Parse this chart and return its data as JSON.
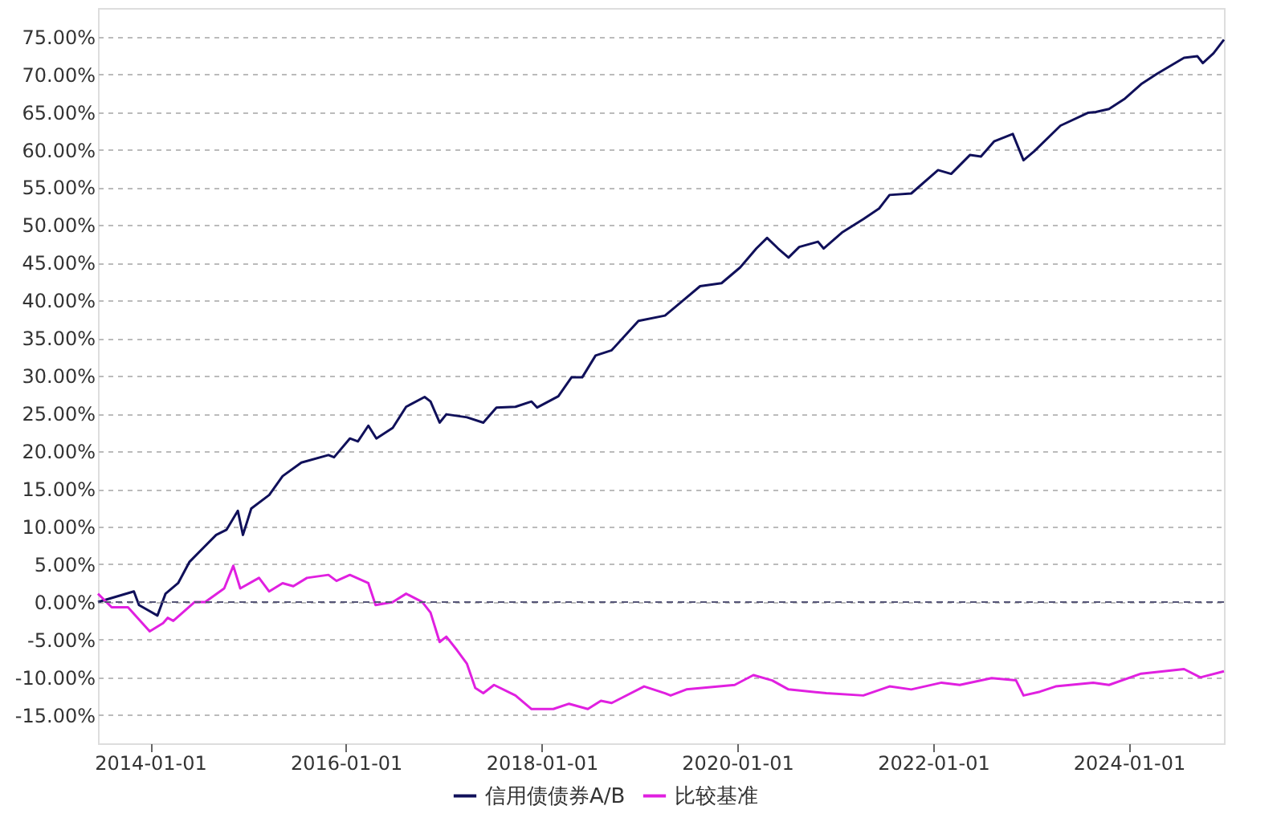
{
  "chart_data": {
    "type": "line",
    "x": [
      "2013-06-20",
      "2013-11-01",
      "2013-11-20",
      "2014-01-28",
      "2014-02-27",
      "2014-04-15",
      "2014-05-27",
      "2014-09-04",
      "2014-10-13",
      "2014-11-24",
      "2014-12-13",
      "2015-01-13",
      "2015-03-21",
      "2015-05-10",
      "2015-07-19",
      "2015-10-28",
      "2015-11-18",
      "2016-01-16",
      "2016-02-15",
      "2016-03-25",
      "2016-04-24",
      "2016-06-24",
      "2016-08-13",
      "2016-10-21",
      "2016-11-12",
      "2016-12-16",
      "2017-01-10",
      "2017-03-28",
      "2017-05-28",
      "2017-07-16",
      "2017-09-25",
      "2017-11-24",
      "2017-12-15",
      "2018-03-04",
      "2018-04-22",
      "2018-06-01",
      "2018-07-21",
      "2018-09-19",
      "2018-12-28",
      "2019-04-06",
      "2019-06-06",
      "2019-08-15",
      "2019-11-03",
      "2020-01-12",
      "2020-03-12",
      "2020-04-21",
      "2020-06-01",
      "2020-07-10",
      "2020-08-19",
      "2020-10-28",
      "2020-11-18",
      "2021-01-25",
      "2021-04-15",
      "2021-06-13",
      "2021-07-22",
      "2021-10-11",
      "2022-01-19",
      "2022-03-09",
      "2022-05-18",
      "2022-06-28",
      "2022-08-16",
      "2022-10-25",
      "2022-12-04",
      "2023-01-13",
      "2023-04-21",
      "2023-08-01",
      "2023-08-31",
      "2023-10-19",
      "2023-12-18",
      "2024-02-16",
      "2024-04-16",
      "2024-07-25",
      "2024-09-13",
      "2024-10-03",
      "2024-11-12",
      "2024-12-21"
    ],
    "series": [
      {
        "name": "信用债债券A/B",
        "color": "#10105a",
        "values": [
          0,
          1.4,
          -0.4,
          -1.8,
          1.1,
          2.5,
          5.3,
          8.9,
          9.6,
          12.1,
          8.9,
          12.4,
          14.2,
          16.7,
          18.5,
          19.5,
          19.2,
          21.7,
          21.3,
          23.4,
          21.7,
          23.1,
          25.9,
          27.2,
          26.6,
          23.8,
          24.9,
          24.5,
          23.8,
          25.8,
          25.9,
          26.6,
          25.8,
          27.3,
          29.8,
          29.8,
          32.7,
          33.4,
          37.3,
          38.0,
          39.8,
          41.9,
          42.3,
          44.4,
          46.9,
          48.3,
          46.9,
          45.7,
          47.1,
          47.8,
          46.9,
          49.0,
          50.8,
          52.2,
          54.0,
          54.2,
          57.3,
          56.8,
          59.3,
          59.1,
          61.1,
          62.1,
          58.6,
          59.8,
          63.2,
          64.9,
          65.0,
          65.4,
          66.8,
          68.7,
          70.1,
          72.2,
          72.4,
          71.5,
          72.8,
          74.6
        ]
      },
      {
        "name": "比较基准",
        "color": "#e020e0",
        "x": [
          "2013-06-20",
          "2013-08-10",
          "2013-10-10",
          "2013-12-30",
          "2014-02-18",
          "2014-03-07",
          "2014-03-28",
          "2014-06-16",
          "2014-07-25",
          "2014-10-04",
          "2014-11-07",
          "2014-12-03",
          "2015-02-11",
          "2015-03-21",
          "2015-05-10",
          "2015-06-19",
          "2015-08-09",
          "2015-10-28",
          "2015-11-27",
          "2016-01-16",
          "2016-03-25",
          "2016-04-21",
          "2016-06-24",
          "2016-08-13",
          "2016-10-12",
          "2016-11-12",
          "2016-12-16",
          "2017-01-10",
          "2017-02-19",
          "2017-03-28",
          "2017-04-28",
          "2017-05-28",
          "2017-07-07",
          "2017-09-25",
          "2017-11-24",
          "2018-02-13",
          "2018-04-13",
          "2018-06-22",
          "2018-08-10",
          "2018-09-19",
          "2019-01-18",
          "2019-04-06",
          "2019-04-27",
          "2019-06-25",
          "2019-12-22",
          "2020-03-01",
          "2020-05-10",
          "2020-07-10",
          "2020-11-28",
          "2021-04-15",
          "2021-07-22",
          "2021-10-11",
          "2022-02-01",
          "2022-04-10",
          "2022-08-07",
          "2022-11-06",
          "2022-12-04",
          "2023-02-03",
          "2023-04-03",
          "2023-08-21",
          "2023-10-19",
          "2024-02-16",
          "2024-07-25",
          "2024-09-24",
          "2024-12-21"
        ],
        "values": [
          1.1,
          -0.7,
          -0.7,
          -3.9,
          -2.8,
          -2.1,
          -2.5,
          0,
          0,
          1.8,
          4.8,
          1.8,
          3.2,
          1.4,
          2.5,
          2.1,
          3.2,
          3.6,
          2.8,
          3.6,
          2.5,
          -0.4,
          0,
          1.1,
          0,
          -1.4,
          -5.3,
          -4.6,
          -6.4,
          -8.2,
          -11.4,
          -12.1,
          -11.0,
          -12.4,
          -14.2,
          -14.2,
          -13.5,
          -14.2,
          -13.1,
          -13.4,
          -11.2,
          -12.1,
          -12.4,
          -11.6,
          -11.0,
          -9.7,
          -10.4,
          -11.6,
          -12.1,
          -12.4,
          -11.2,
          -11.6,
          -10.7,
          -11.0,
          -10.1,
          -10.4,
          -12.4,
          -11.9,
          -11.2,
          -10.7,
          -11.0,
          -9.5,
          -8.9,
          -10.0,
          -9.2
        ]
      }
    ],
    "xlim": [
      "2013-06-20",
      "2024-12-21"
    ],
    "xticks": [
      "2014-01-01",
      "2016-01-01",
      "2018-01-01",
      "2020-01-01",
      "2022-01-01",
      "2024-01-01"
    ],
    "ylim": [
      -18.75,
      78.8
    ],
    "yticks": [
      {
        "value": -15,
        "label": "-15.00%"
      },
      {
        "value": -10,
        "label": "-10.00%"
      },
      {
        "value": -5,
        "label": "-5.00%"
      },
      {
        "value": 0,
        "label": "0.00%"
      },
      {
        "value": 5,
        "label": "5.00%"
      },
      {
        "value": 10,
        "label": "10.00%"
      },
      {
        "value": 15,
        "label": "15.00%"
      },
      {
        "value": 20,
        "label": "20.00%"
      },
      {
        "value": 25,
        "label": "25.00%"
      },
      {
        "value": 30,
        "label": "30.00%"
      },
      {
        "value": 35,
        "label": "35.00%"
      },
      {
        "value": 40,
        "label": "40.00%"
      },
      {
        "value": 45,
        "label": "45.00%"
      },
      {
        "value": 50,
        "label": "50.00%"
      },
      {
        "value": 55,
        "label": "55.00%"
      },
      {
        "value": 60,
        "label": "60.00%"
      },
      {
        "value": 65,
        "label": "65.00%"
      },
      {
        "value": 70,
        "label": "70.00%"
      },
      {
        "value": 75,
        "label": "75.00%"
      }
    ],
    "ref_lines": [
      {
        "axis": "y",
        "value": 0,
        "color": "#555577",
        "line_style": "dashed"
      }
    ],
    "grid": "y",
    "legend": "bottom",
    "marker": "none",
    "line_style": "solid"
  }
}
